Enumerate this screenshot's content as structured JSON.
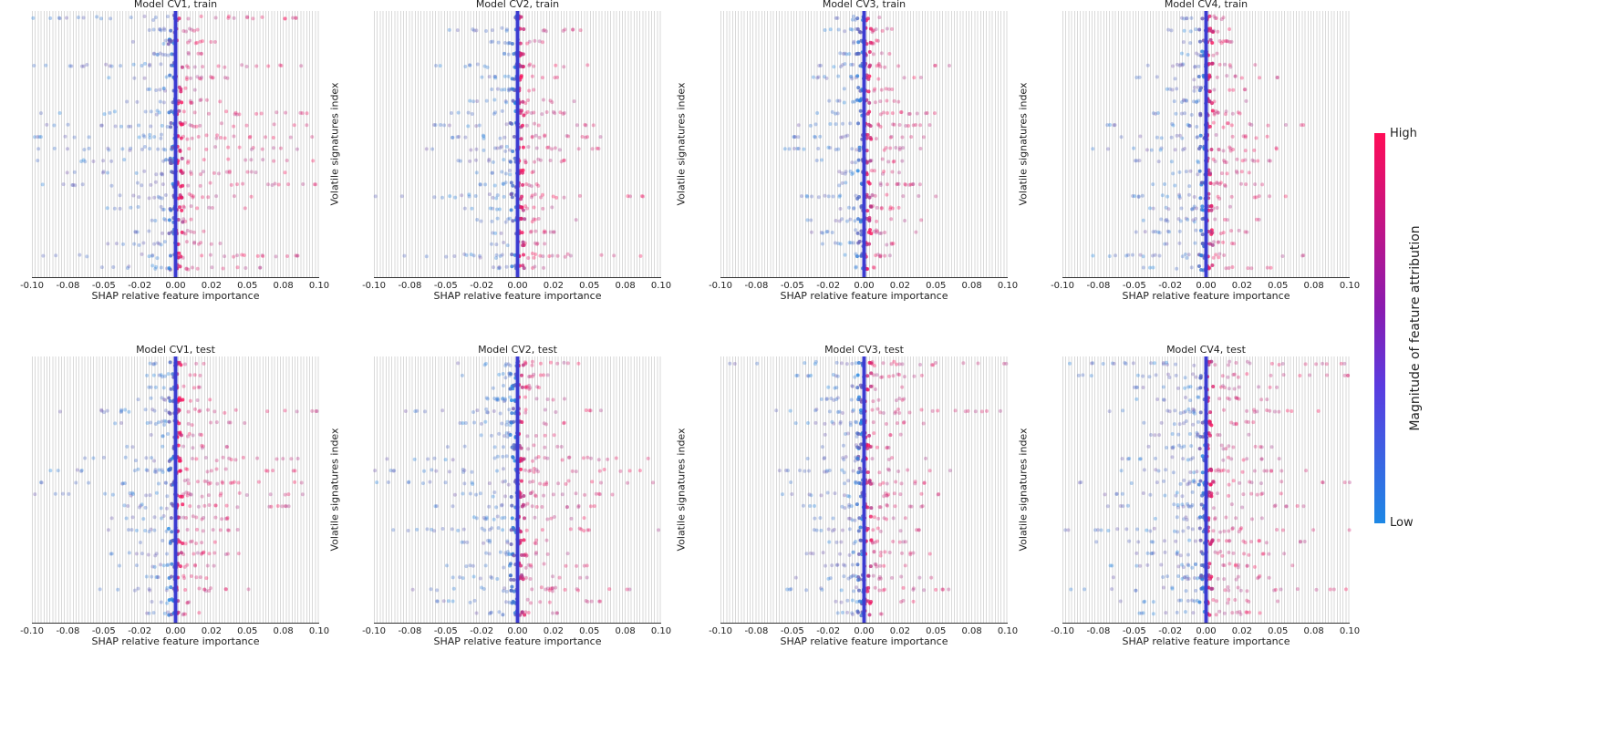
{
  "chart_data": [
    {
      "type": "scatter",
      "title": "Model CV1, train",
      "xlabel": "SHAP relative feature importance",
      "ylabel": "Volatile signatures index",
      "xlim": [
        -0.1,
        0.1
      ],
      "spread": [
        0.1,
        0.02,
        0.03,
        0.02,
        0.1,
        0.05,
        0.02,
        0.04,
        0.1,
        0.1,
        0.1,
        0.1,
        0.1,
        0.08,
        0.1,
        0.06,
        0.05,
        0.02,
        0.03,
        0.05,
        0.1,
        0.06
      ]
    },
    {
      "type": "scatter",
      "title": "Model CV2, train",
      "xlabel": "SHAP relative feature importance",
      "ylabel": "Volatile signatures index",
      "xlim": [
        -0.1,
        0.1
      ],
      "spread": [
        0.005,
        0.05,
        0.02,
        0.01,
        0.06,
        0.03,
        0.02,
        0.04,
        0.05,
        0.06,
        0.06,
        0.07,
        0.05,
        0.03,
        0.03,
        0.1,
        0.04,
        0.05,
        0.03,
        0.02,
        0.1,
        0.02
      ]
    },
    {
      "type": "scatter",
      "title": "Model CV3, train",
      "xlabel": "SHAP relative feature importance",
      "ylabel": "Volatile signatures index",
      "xlim": [
        -0.1,
        0.1
      ],
      "spread": [
        0.02,
        0.03,
        0.02,
        0.02,
        0.06,
        0.04,
        0.02,
        0.03,
        0.05,
        0.05,
        0.05,
        0.06,
        0.04,
        0.03,
        0.04,
        0.05,
        0.03,
        0.04,
        0.05,
        0.03,
        0.02,
        0.01
      ]
    },
    {
      "type": "scatter",
      "title": "Model CV4, train",
      "xlabel": "SHAP relative feature importance",
      "ylabel": "Volatile signatures index",
      "xlim": [
        -0.1,
        0.1
      ],
      "spread": [
        0.02,
        0.03,
        0.02,
        0.02,
        0.05,
        0.05,
        0.03,
        0.03,
        0.05,
        0.07,
        0.06,
        0.08,
        0.05,
        0.04,
        0.04,
        0.06,
        0.04,
        0.05,
        0.05,
        0.03,
        0.08,
        0.05
      ]
    },
    {
      "type": "scatter",
      "title": "Model CV1, test",
      "xlabel": "SHAP relative feature importance",
      "ylabel": "Volatile signatures index",
      "xlim": [
        -0.1,
        0.1
      ],
      "spread": [
        0.02,
        0.02,
        0.02,
        0.03,
        0.1,
        0.05,
        0.02,
        0.04,
        0.09,
        0.1,
        0.1,
        0.1,
        0.08,
        0.05,
        0.05,
        0.04,
        0.05,
        0.04,
        0.03,
        0.06,
        0.02,
        0.02
      ]
    },
    {
      "type": "scatter",
      "title": "Model CV2, test",
      "xlabel": "SHAP relative feature importance",
      "ylabel": "Volatile signatures index",
      "xlim": [
        -0.1,
        0.1
      ],
      "spread": [
        0.05,
        0.04,
        0.03,
        0.04,
        0.08,
        0.04,
        0.03,
        0.05,
        0.1,
        0.1,
        0.1,
        0.08,
        0.06,
        0.05,
        0.1,
        0.05,
        0.04,
        0.05,
        0.05,
        0.08,
        0.06,
        0.03
      ]
    },
    {
      "type": "scatter",
      "title": "Model CV3, test",
      "xlabel": "SHAP relative feature importance",
      "ylabel": "Volatile signatures index",
      "xlim": [
        -0.1,
        0.1
      ],
      "spread": [
        0.1,
        0.05,
        0.03,
        0.04,
        0.1,
        0.05,
        0.03,
        0.03,
        0.05,
        0.06,
        0.06,
        0.06,
        0.05,
        0.04,
        0.04,
        0.03,
        0.05,
        0.03,
        0.05,
        0.06,
        0.04,
        0.02
      ]
    },
    {
      "type": "scatter",
      "title": "Model CV4, test",
      "xlabel": "SHAP relative feature importance",
      "ylabel": "Volatile signatures index",
      "xlim": [
        -0.1,
        0.1
      ],
      "spread": [
        0.1,
        0.1,
        0.05,
        0.05,
        0.08,
        0.05,
        0.04,
        0.05,
        0.06,
        0.08,
        0.1,
        0.08,
        0.07,
        0.05,
        0.1,
        0.08,
        0.06,
        0.07,
        0.08,
        0.1,
        0.06,
        0.05
      ]
    }
  ],
  "x_ticks": [
    -0.1,
    -0.075,
    -0.05,
    -0.025,
    0,
    0.025,
    0.05,
    0.075,
    0.1
  ],
  "x_tick_labels": [
    "-0.10",
    "-0.08",
    "-0.05",
    "-0.02",
    "0.00",
    "0.02",
    "0.05",
    "0.08",
    "0.10"
  ],
  "colorbar": {
    "title": "Magnitude of feature attribution",
    "high": "High",
    "low": "Low",
    "high_color": "#ff0d57",
    "low_color": "#1e88e5",
    "center_line_color": "#3b3bd0"
  }
}
